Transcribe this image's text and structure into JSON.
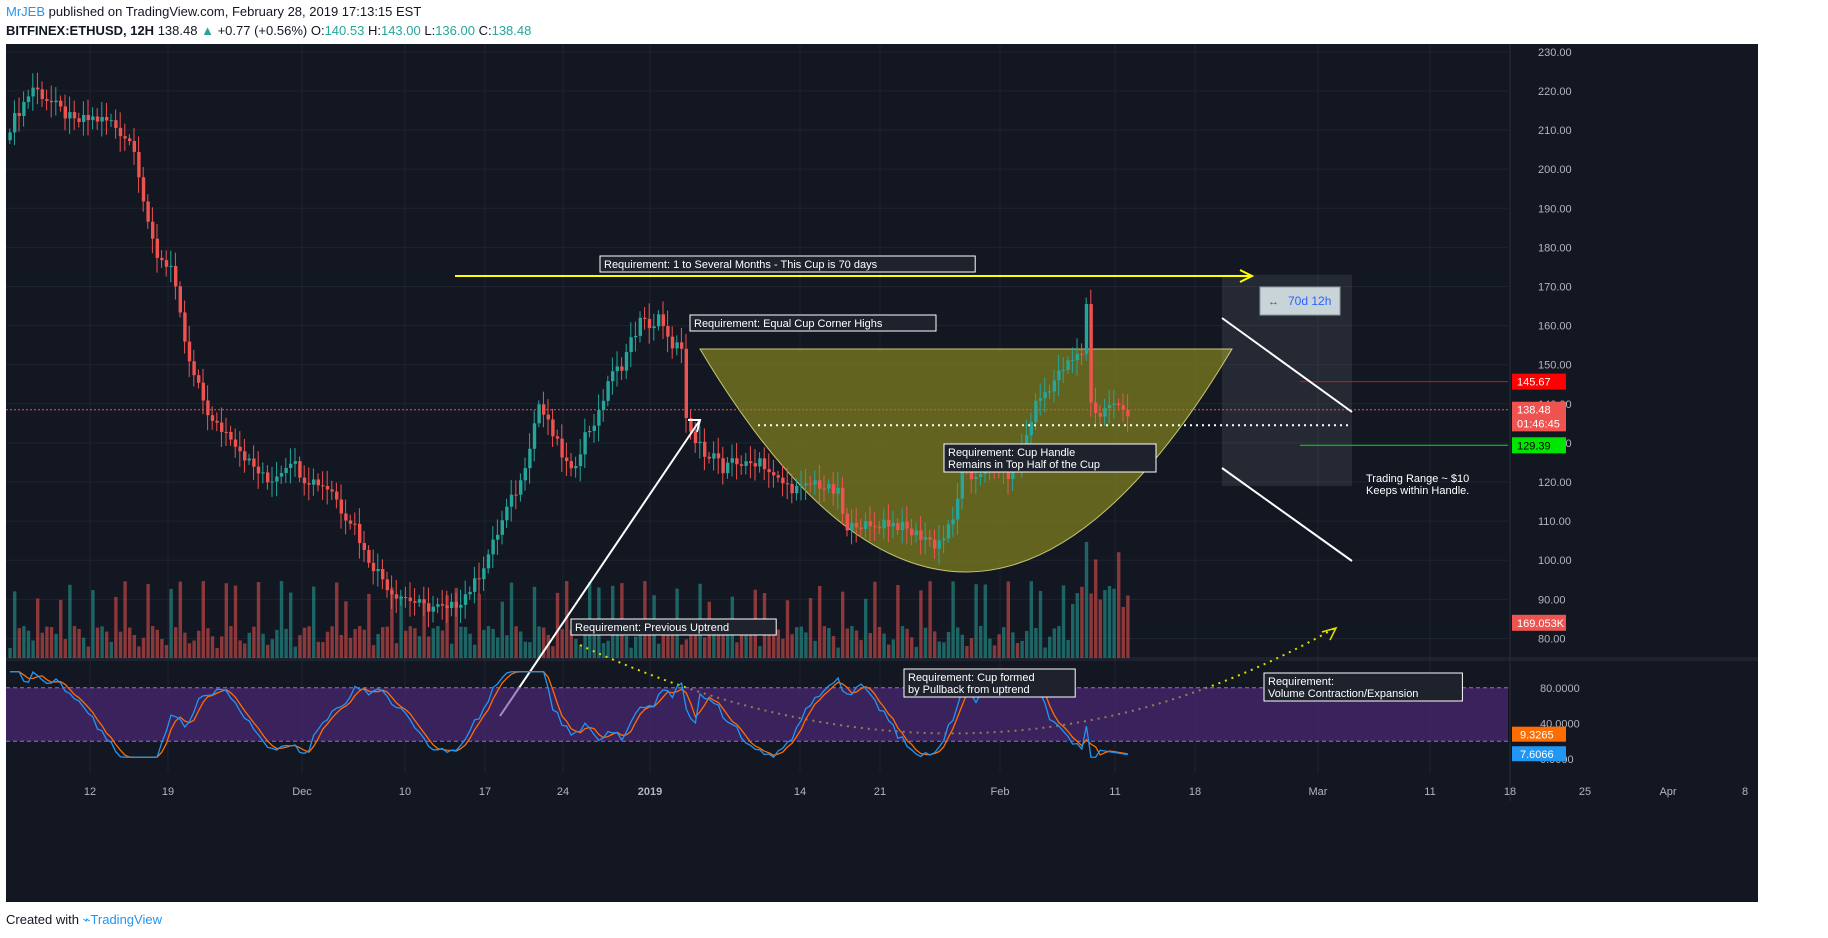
{
  "header": {
    "author": "MrJEB",
    "published": "published on TradingView.com, February 28, 2019 17:13:15 EST",
    "symbol": "BITFINEX:ETHUSD, 12H",
    "last": "138.48",
    "change": "+0.77 (+0.56%)",
    "o_label": "O:",
    "o": "140.53",
    "h_label": "H:",
    "h": "143.00",
    "l_label": "L:",
    "l": "136.00",
    "c_label": "C:",
    "c": "138.48"
  },
  "footer": {
    "created": "Created with",
    "brand": "TradingView"
  },
  "colors": {
    "background": "#131722",
    "up": "#26a69a",
    "down": "#ef5350",
    "cup_fill": "#8c8c1e",
    "stoch_band": "#5b2c8c",
    "stoch_k": "#2196f3",
    "stoch_d": "#ff6d00"
  },
  "chart_data": {
    "type": "candlestick",
    "price_axis": {
      "range": [
        75,
        232
      ],
      "ticks": [
        "230.00",
        "220.00",
        "210.00",
        "200.00",
        "190.00",
        "180.00",
        "170.00",
        "160.00",
        "150.00",
        "140.00",
        "130.00",
        "120.00",
        "110.00",
        "100.00",
        "90.00",
        "80.00"
      ]
    },
    "time_axis": [
      "12",
      "19",
      "Dec",
      "10",
      "17",
      "24",
      "2019",
      "14",
      "21",
      "Feb",
      "11",
      "18",
      "Mar",
      "11",
      "18",
      "25",
      "Apr",
      "8"
    ],
    "price_badges": [
      {
        "label": "145.67",
        "value": 145.67,
        "color": "#ff0000"
      },
      {
        "label": "138.48",
        "value": 138.48,
        "color": "#ef5350"
      },
      {
        "label": "01:46:45",
        "value": 135.0,
        "color": "#ef5350"
      },
      {
        "label": "129.39",
        "value": 129.39,
        "color": "#00e600"
      },
      {
        "label": "169.053K",
        "value": 84.0,
        "color": "#ef5350"
      }
    ],
    "levels": [
      {
        "name": "handle-top",
        "value": 145.67
      },
      {
        "name": "current",
        "value": 138.48
      },
      {
        "name": "handle-bottom",
        "value": 129.39
      },
      {
        "name": "mid-cup",
        "value": 134.5
      }
    ],
    "close_path": [
      [
        0,
        211
      ],
      [
        5,
        221
      ],
      [
        10,
        216
      ],
      [
        14,
        212
      ],
      [
        18,
        213
      ],
      [
        22,
        212
      ],
      [
        27,
        206
      ],
      [
        30,
        185
      ],
      [
        32,
        178
      ],
      [
        35,
        175
      ],
      [
        37,
        162
      ],
      [
        39,
        150
      ],
      [
        41,
        144
      ],
      [
        44,
        135
      ],
      [
        48,
        132
      ],
      [
        52,
        125
      ],
      [
        56,
        120
      ],
      [
        58,
        122
      ],
      [
        61,
        126
      ],
      [
        64,
        121
      ],
      [
        67,
        120
      ],
      [
        70,
        118
      ],
      [
        72,
        113
      ],
      [
        75,
        109
      ],
      [
        77,
        102
      ],
      [
        80,
        97
      ],
      [
        83,
        92
      ],
      [
        87,
        90
      ],
      [
        90,
        88
      ],
      [
        93,
        88
      ],
      [
        95,
        87
      ],
      [
        98,
        90
      ],
      [
        101,
        94
      ],
      [
        105,
        104
      ],
      [
        108,
        113
      ],
      [
        111,
        120
      ],
      [
        115,
        140
      ],
      [
        118,
        132
      ],
      [
        122,
        122
      ],
      [
        125,
        132
      ],
      [
        128,
        137
      ],
      [
        130,
        146
      ],
      [
        133,
        150
      ],
      [
        135,
        156
      ],
      [
        137,
        161
      ],
      [
        140,
        160
      ],
      [
        141,
        162
      ],
      [
        143,
        156
      ],
      [
        145,
        155
      ],
      [
        146,
        153
      ],
      [
        147,
        135
      ],
      [
        149,
        130
      ],
      [
        151,
        128
      ],
      [
        154,
        126
      ],
      [
        155,
        121
      ],
      [
        157,
        126
      ],
      [
        160,
        124
      ],
      [
        163,
        126
      ],
      [
        166,
        121
      ],
      [
        169,
        119
      ],
      [
        172,
        118
      ],
      [
        175,
        120
      ],
      [
        178,
        118
      ],
      [
        180,
        117
      ],
      [
        182,
        107
      ],
      [
        184,
        110
      ],
      [
        187,
        108
      ],
      [
        190,
        110
      ],
      [
        193,
        109
      ],
      [
        196,
        107
      ],
      [
        199,
        106
      ],
      [
        201,
        104
      ],
      [
        203,
        106
      ],
      [
        205,
        110
      ],
      [
        207,
        123
      ],
      [
        209,
        121
      ],
      [
        211,
        123
      ],
      [
        214,
        124
      ],
      [
        217,
        122
      ],
      [
        219,
        125
      ],
      [
        221,
        132
      ],
      [
        223,
        140
      ],
      [
        225,
        143
      ],
      [
        227,
        146
      ],
      [
        229,
        149
      ],
      [
        231,
        151
      ],
      [
        233,
        153
      ],
      [
        234,
        166
      ],
      [
        235,
        140
      ],
      [
        237,
        137
      ],
      [
        239,
        140
      ],
      [
        241,
        139
      ],
      [
        243,
        138
      ]
    ],
    "volume_max_k": 300,
    "stochastic": {
      "levels": [
        "80.0000",
        "40.0000",
        "0.0000"
      ],
      "range": [
        0,
        100
      ],
      "band": [
        20,
        80
      ],
      "k_label": "9.3265",
      "d_label": "7.6066",
      "k_value": 9.3265,
      "d_value": 7.6066
    },
    "annotations": [
      {
        "text": "Requirement: 1 to Several Months - This Cup is 70 days"
      },
      {
        "text": "Requirement: Equal Cup Corner Highs"
      },
      {
        "text": "Requirement: Cup Handle\nRemains in Top Half of the Cup"
      },
      {
        "text": "Requirement: Previous Uptrend"
      },
      {
        "text": "Requirement: Cup formed\nby Pullback from uptrend"
      },
      {
        "text": "Requirement:\nVolume Contraction/Expansion"
      },
      {
        "text": "Trading Range ~ $10\nKeeps within Handle."
      }
    ],
    "measure_label": "70d 12h"
  }
}
